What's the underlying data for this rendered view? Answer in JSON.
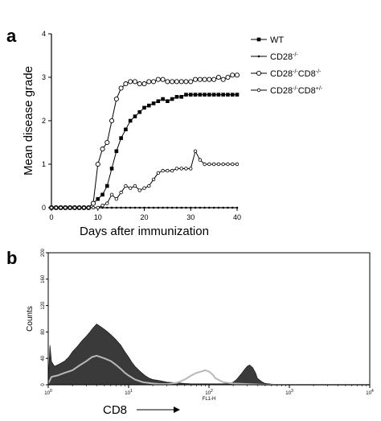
{
  "figure": {
    "panel_a_letter": "a",
    "panel_b_letter": "b"
  },
  "chart_data": [
    {
      "type": "line",
      "panel": "a",
      "xlabel": "Days after immunization",
      "ylabel": "Mean disease grade",
      "xlim": [
        0,
        40
      ],
      "ylim": [
        0,
        4
      ],
      "xticks": [
        0,
        10,
        20,
        30,
        40
      ],
      "yticks": [
        0,
        1,
        2,
        3,
        4
      ],
      "grid": false,
      "legend_position": "top-right",
      "series": [
        {
          "name": "WT",
          "marker": "filled-square",
          "x": [
            0,
            1,
            2,
            3,
            4,
            5,
            6,
            7,
            8,
            9,
            10,
            11,
            12,
            13,
            14,
            15,
            16,
            17,
            18,
            19,
            20,
            21,
            22,
            23,
            24,
            25,
            26,
            27,
            28,
            29,
            30,
            31,
            32,
            33,
            34,
            35,
            36,
            37,
            38,
            39,
            40
          ],
          "y": [
            0,
            0,
            0,
            0,
            0,
            0,
            0,
            0,
            0,
            0.1,
            0.2,
            0.3,
            0.5,
            0.9,
            1.3,
            1.6,
            1.8,
            2.0,
            2.1,
            2.2,
            2.3,
            2.35,
            2.4,
            2.45,
            2.5,
            2.45,
            2.5,
            2.55,
            2.55,
            2.6,
            2.6,
            2.6,
            2.6,
            2.6,
            2.6,
            2.6,
            2.6,
            2.6,
            2.6,
            2.6,
            2.6
          ]
        },
        {
          "name": "CD28-/-",
          "marker": "small-dot",
          "x": [
            0,
            1,
            2,
            3,
            4,
            5,
            6,
            7,
            8,
            9,
            10,
            11,
            12,
            13,
            14,
            15,
            16,
            17,
            18,
            19,
            20,
            21,
            22,
            23,
            24,
            25,
            26,
            27,
            28,
            29,
            30,
            31,
            32,
            33,
            34,
            35,
            36,
            37,
            38,
            39,
            40
          ],
          "y": [
            0,
            0,
            0,
            0,
            0,
            0,
            0,
            0,
            0,
            0,
            0,
            0,
            0,
            0,
            0,
            0,
            0,
            0,
            0,
            0,
            0,
            0,
            0,
            0,
            0,
            0,
            0,
            0,
            0,
            0,
            0,
            0,
            0,
            0,
            0,
            0,
            0,
            0,
            0,
            0,
            0
          ]
        },
        {
          "name": "CD28-/-CD8-/-",
          "marker": "open-circle",
          "x": [
            0,
            1,
            2,
            3,
            4,
            5,
            6,
            7,
            8,
            9,
            10,
            11,
            12,
            13,
            14,
            15,
            16,
            17,
            18,
            19,
            20,
            21,
            22,
            23,
            24,
            25,
            26,
            27,
            28,
            29,
            30,
            31,
            32,
            33,
            34,
            35,
            36,
            37,
            38,
            39,
            40
          ],
          "y": [
            0,
            0,
            0,
            0,
            0,
            0,
            0,
            0,
            0,
            0.1,
            1.0,
            1.35,
            1.5,
            2.0,
            2.5,
            2.75,
            2.85,
            2.9,
            2.9,
            2.85,
            2.85,
            2.9,
            2.9,
            2.95,
            2.95,
            2.9,
            2.9,
            2.9,
            2.9,
            2.9,
            2.9,
            2.95,
            2.95,
            2.95,
            2.95,
            2.95,
            3.0,
            2.95,
            3.0,
            3.05,
            3.05
          ]
        },
        {
          "name": "CD28-/-CD8+/-",
          "marker": "small-open-circle",
          "x": [
            0,
            1,
            2,
            3,
            4,
            5,
            6,
            7,
            8,
            9,
            10,
            11,
            12,
            13,
            14,
            15,
            16,
            17,
            18,
            19,
            20,
            21,
            22,
            23,
            24,
            25,
            26,
            27,
            28,
            29,
            30,
            31,
            32,
            33,
            34,
            35,
            36,
            37,
            38,
            39,
            40
          ],
          "y": [
            0,
            0,
            0,
            0,
            0,
            0,
            0,
            0,
            0,
            0,
            0,
            0.05,
            0.1,
            0.3,
            0.2,
            0.35,
            0.5,
            0.45,
            0.5,
            0.4,
            0.45,
            0.5,
            0.65,
            0.8,
            0.85,
            0.85,
            0.85,
            0.9,
            0.9,
            0.9,
            0.9,
            1.3,
            1.1,
            1.0,
            1.0,
            1.0,
            1.0,
            1.0,
            1.0,
            1.0,
            1.0
          ]
        }
      ]
    },
    {
      "type": "area",
      "panel": "b",
      "xlabel": "CD8",
      "xlabel_small": "FL1-H",
      "ylabel": "Counts",
      "x_scale": "log",
      "xlim": [
        1,
        10000
      ],
      "ylim": [
        0,
        200
      ],
      "xtick_labels": [
        "10",
        "10",
        "10",
        "10",
        "10"
      ],
      "xtick_exponents": [
        "0",
        "1",
        "2",
        "3",
        "4"
      ],
      "yticks": [
        "0",
        "40",
        "80",
        "120",
        "160",
        "200"
      ],
      "grid": false,
      "series": [
        {
          "name": "",
          "style": "filled-dark",
          "x": [
            1,
            1.05,
            1.1,
            1.2,
            1.4,
            1.6,
            1.8,
            2,
            2.3,
            2.6,
            3,
            3.3,
            3.6,
            4,
            4.5,
            5,
            5.5,
            6,
            6.5,
            7,
            8,
            9,
            10,
            11,
            12,
            14,
            16,
            18,
            20,
            25,
            30,
            40,
            50,
            60,
            70,
            80,
            100,
            120,
            150,
            180,
            200,
            220,
            250,
            280,
            300,
            320,
            350,
            380,
            400,
            450,
            500,
            600,
            700,
            1000,
            2000,
            5000,
            10000
          ],
          "y": [
            4,
            60,
            35,
            28,
            32,
            36,
            42,
            50,
            58,
            66,
            74,
            80,
            86,
            92,
            88,
            84,
            80,
            76,
            72,
            68,
            60,
            50,
            42,
            34,
            28,
            20,
            14,
            10,
            8,
            6,
            4,
            3,
            2,
            1.5,
            1.5,
            1.5,
            1.5,
            1.5,
            1.5,
            2,
            4,
            8,
            16,
            24,
            28,
            30,
            26,
            18,
            10,
            5,
            2,
            1,
            0,
            0,
            0,
            0,
            0
          ]
        },
        {
          "name": "",
          "style": "line-light",
          "x": [
            1,
            1.1,
            1.3,
            1.6,
            2,
            2.5,
            3,
            3.5,
            4,
            4.5,
            5,
            6,
            7,
            8,
            9,
            10,
            12,
            15,
            20,
            25,
            30,
            40,
            50,
            60,
            70,
            80,
            90,
            100,
            110,
            120,
            150,
            200,
            300,
            500,
            1000,
            10000
          ],
          "y": [
            2,
            12,
            14,
            18,
            22,
            30,
            36,
            42,
            44,
            42,
            40,
            36,
            30,
            24,
            18,
            14,
            8,
            4,
            2,
            1,
            1,
            3,
            8,
            14,
            18,
            20,
            22,
            20,
            16,
            10,
            4,
            2,
            1,
            0,
            0,
            0
          ]
        }
      ]
    }
  ]
}
